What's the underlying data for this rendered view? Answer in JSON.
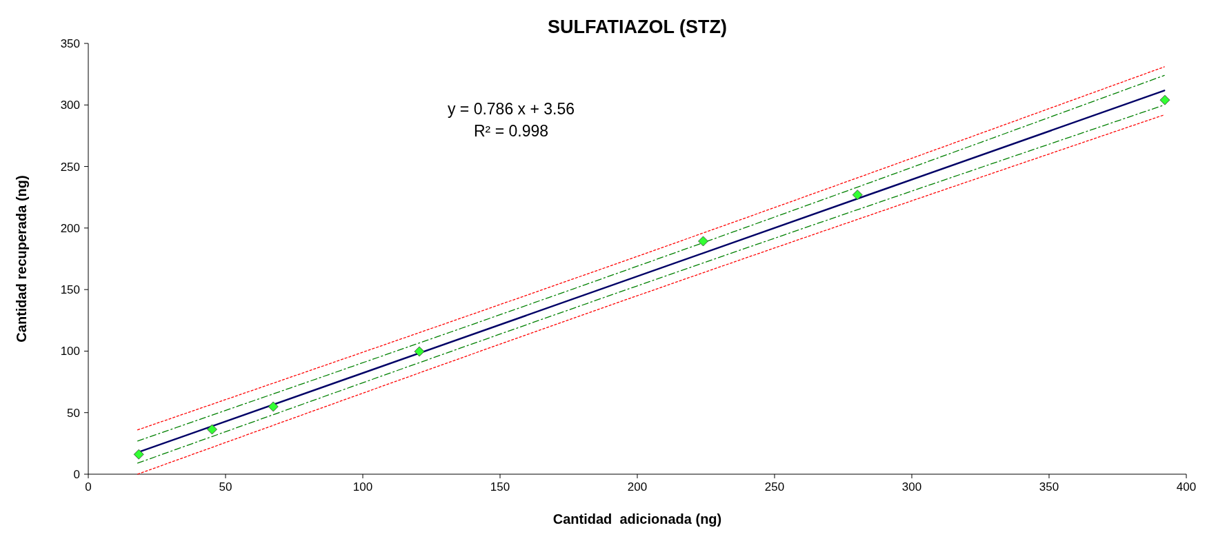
{
  "chart_data": {
    "type": "scatter",
    "title": "SULFATIAZOL (STZ)",
    "xlabel": "Cantidad  adicionada (ng)",
    "ylabel": "Cantidad recuperada (ng)",
    "xlim": [
      0,
      400
    ],
    "ylim": [
      0,
      350
    ],
    "xticks": [
      0,
      50,
      100,
      150,
      200,
      250,
      300,
      350,
      400
    ],
    "yticks": [
      0,
      50,
      100,
      150,
      200,
      250,
      300,
      350
    ],
    "grid": false,
    "annotations": [
      "y = 0.786 x + 3.56",
      "R² = 0.998"
    ],
    "series": [
      {
        "type": "line",
        "color": "#ff0000",
        "line_style": "dotted",
        "marker": "none",
        "x": [
          18,
          200,
          392
        ],
        "values": [
          36,
          177,
          331
        ]
      },
      {
        "type": "line",
        "color": "#008000",
        "line_style": "dashed",
        "marker": "none",
        "x": [
          18,
          200,
          392
        ],
        "values": [
          27,
          169,
          324
        ]
      },
      {
        "type": "line",
        "color": "#000066",
        "line_style": "solid",
        "marker": "none",
        "x": [
          18,
          392
        ],
        "values": [
          17.7,
          311.7
        ]
      },
      {
        "type": "line",
        "color": "#008000",
        "line_style": "dashed",
        "marker": "none",
        "x": [
          18,
          200,
          392
        ],
        "values": [
          9,
          153,
          300
        ]
      },
      {
        "type": "line",
        "color": "#ff0000",
        "line_style": "dotted",
        "marker": "none",
        "x": [
          18,
          200,
          392
        ],
        "values": [
          0,
          145,
          292
        ]
      },
      {
        "color": "#33ff33",
        "marker": "diamond",
        "x": [
          18.4,
          45.1,
          67.4,
          120.6,
          224,
          280.2,
          392.2
        ],
        "values": [
          16.1,
          36.4,
          54.9,
          99.7,
          189.3,
          227,
          304
        ]
      }
    ]
  }
}
